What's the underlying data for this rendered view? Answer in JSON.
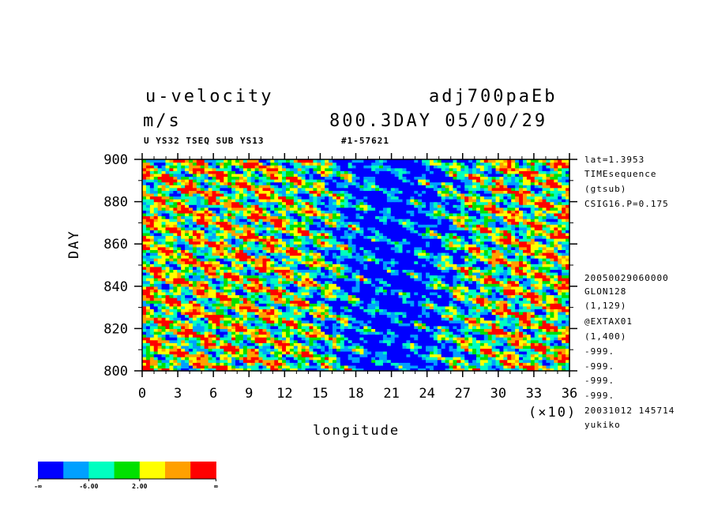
{
  "header": {
    "title_left": "u-velocity",
    "title_right": "adj700paEb",
    "units": "m/s",
    "time_label": "800.3DAY 05/00/29",
    "subtitle_left": "U YS32 TSEQ SUB YS13",
    "subtitle_right": "#1-57621"
  },
  "side_info": [
    "lat=1.3953",
    "TIMEsequence",
    "(gtsub)",
    "CSIG16.P=0.175",
    "20050029060000",
    "GLON128",
    "(1,129)",
    "@EXTAX01",
    "(1,400)",
    "-999.",
    "-999.",
    "-999.",
    "-999.",
    "20031012 145714",
    "yukiko"
  ],
  "chart_data": {
    "type": "heatmap",
    "title": "u-velocity",
    "xlabel": "longitude",
    "ylabel": "DAY",
    "x_multiplier_label": "(×10)",
    "xlim": [
      0,
      36
    ],
    "ylim": [
      800,
      900
    ],
    "x_ticks": [
      "0",
      "3",
      "6",
      "9",
      "12",
      "15",
      "18",
      "21",
      "24",
      "27",
      "30",
      "33",
      "36"
    ],
    "y_ticks": [
      "800",
      "820",
      "840",
      "860",
      "880",
      "900"
    ],
    "colorbar": {
      "colors": [
        "#0000ff",
        "#00a0ff",
        "#00ffc0",
        "#00e000",
        "#ffff00",
        "#ffa000",
        "#ff0000"
      ],
      "labels": [
        "-∞",
        "-6.00",
        "2.00",
        "∞"
      ]
    },
    "pattern": "westward-tilted streaks; strong negative (easterly) region between longitude 150 and 270, positive westerly streaks elsewhere"
  }
}
